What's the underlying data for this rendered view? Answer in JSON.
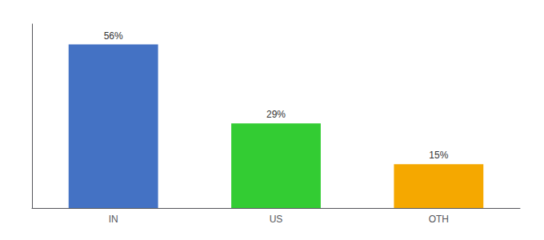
{
  "chart_data": {
    "type": "bar",
    "categories": [
      "IN",
      "US",
      "OTH"
    ],
    "values": [
      56,
      29,
      15
    ],
    "value_labels": [
      "56%",
      "29%",
      "15%"
    ],
    "colors": [
      "#4472C4",
      "#33CC33",
      "#F5A800"
    ],
    "ylim": [
      0,
      63
    ],
    "grid": false,
    "tick_labels": "x"
  }
}
